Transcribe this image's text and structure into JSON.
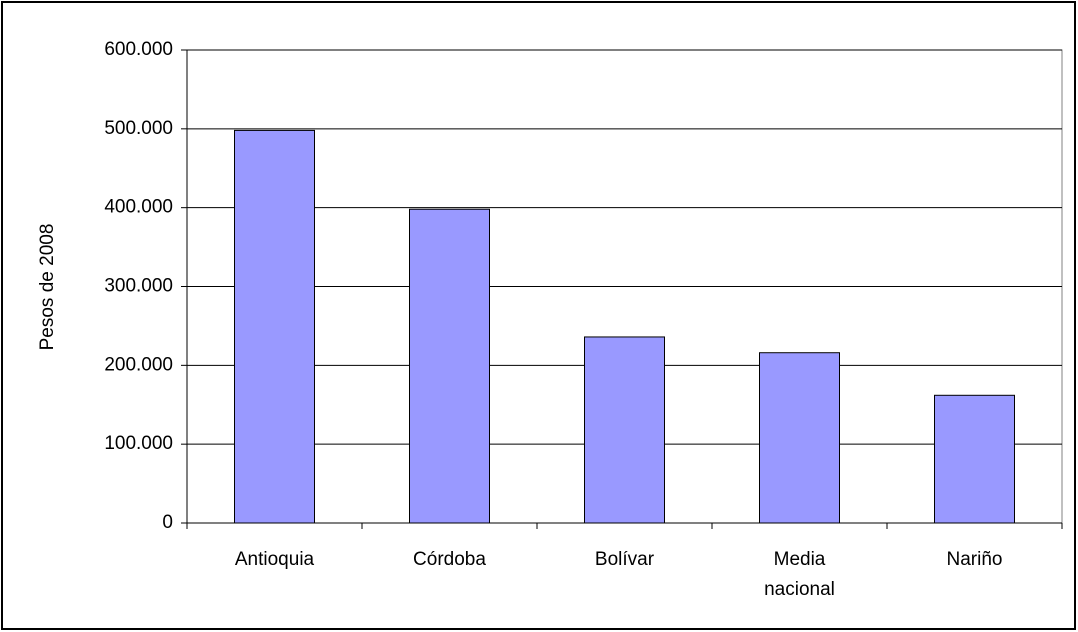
{
  "chart_data": {
    "type": "bar",
    "y_label": "Pesos de 2008",
    "categories": [
      "Antioquia",
      "Córdoba",
      "Bolívar",
      "Media nacional",
      "Nariño"
    ],
    "values": [
      498000,
      398000,
      236000,
      216000,
      162000
    ],
    "color": "#9999ff",
    "ylim": [
      0,
      600000
    ],
    "yticks": [
      0,
      {
        "value": 100000,
        "label": "100.000"
      },
      {
        "value": 200000,
        "label": "200.000"
      },
      {
        "value": 300000,
        "label": "300.000"
      },
      {
        "value": 400000,
        "label": "400.000"
      },
      {
        "value": 500000,
        "label": "500.000"
      },
      {
        "value": 600000,
        "label": "600.000"
      }
    ],
    "grid": true
  }
}
